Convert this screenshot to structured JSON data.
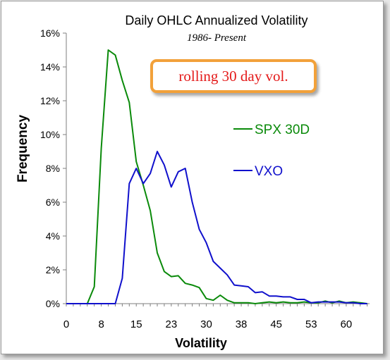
{
  "chart_data": {
    "type": "line",
    "title": "Daily OHLC Annualized Volatility",
    "subtitle": "1986- Present",
    "annotation": "rolling 30 day vol.",
    "xlabel": "Volatility",
    "ylabel": "Frequency",
    "xlim": [
      0,
      65
    ],
    "ylim": [
      0,
      16
    ],
    "x_tick_labels": [
      "0",
      "8",
      "15",
      "23",
      "30",
      "38",
      "45",
      "53",
      "60"
    ],
    "x_tick_values": [
      0,
      7.5,
      15,
      22.5,
      30,
      37.5,
      45,
      52.5,
      60
    ],
    "y_tick_labels": [
      "0%",
      "2%",
      "4%",
      "6%",
      "8%",
      "10%",
      "12%",
      "14%",
      "16%"
    ],
    "y_tick_values": [
      0,
      2,
      4,
      6,
      8,
      10,
      12,
      14,
      16
    ],
    "legend_position": "right",
    "grid": false,
    "series": [
      {
        "name": "SPX 30D",
        "color": "#0a8a0a",
        "x": [
          0,
          1.5,
          3,
          4.5,
          6,
          7.5,
          9,
          10.5,
          12,
          13.5,
          15,
          16.5,
          18,
          19.5,
          21,
          22.5,
          24,
          25.5,
          27,
          28.5,
          30,
          31.5,
          33,
          34.5,
          36,
          37.5,
          39,
          40.5,
          42,
          43.5,
          45,
          46.5,
          48,
          49.5,
          51,
          52.5,
          54,
          55.5,
          57,
          58.5,
          60,
          61.5,
          63,
          64.5
        ],
        "values": [
          0,
          0,
          0,
          0,
          1.0,
          9.2,
          15.0,
          14.7,
          13.2,
          11.9,
          8.4,
          7.0,
          5.5,
          3.0,
          1.9,
          1.6,
          1.65,
          1.2,
          1.1,
          0.95,
          0.3,
          0.2,
          0.5,
          0.2,
          0.05,
          0.05,
          0.05,
          0,
          0.05,
          0.1,
          0.05,
          0.1,
          0.05,
          0.05,
          0.1,
          0.05,
          0.05,
          0.15,
          0.05,
          0.15,
          0.05,
          0.1,
          0.05,
          0
        ]
      },
      {
        "name": "VXO",
        "color": "#1010cc",
        "x": [
          0,
          1.5,
          3,
          4.5,
          6,
          7.5,
          9,
          10.5,
          12,
          13.5,
          15,
          16.5,
          18,
          19.5,
          21,
          22.5,
          24,
          25.5,
          27,
          28.5,
          30,
          31.5,
          33,
          34.5,
          36,
          37.5,
          39,
          40.5,
          42,
          43.5,
          45,
          46.5,
          48,
          49.5,
          51,
          52.5,
          54,
          55.5,
          57,
          58.5,
          60,
          61.5,
          63,
          64.5
        ],
        "values": [
          0,
          0,
          0,
          0,
          0,
          0,
          0,
          0,
          1.5,
          7.1,
          8.0,
          7.1,
          7.7,
          9.0,
          8.2,
          6.9,
          7.8,
          8.0,
          6.0,
          4.4,
          3.6,
          2.5,
          2.1,
          1.7,
          1.1,
          1.05,
          1.0,
          0.65,
          0.7,
          0.45,
          0.45,
          0.4,
          0.4,
          0.25,
          0.25,
          0.05,
          0.1,
          0.1,
          0.1,
          0.1,
          0.05,
          0.05,
          0,
          0
        ]
      }
    ]
  }
}
